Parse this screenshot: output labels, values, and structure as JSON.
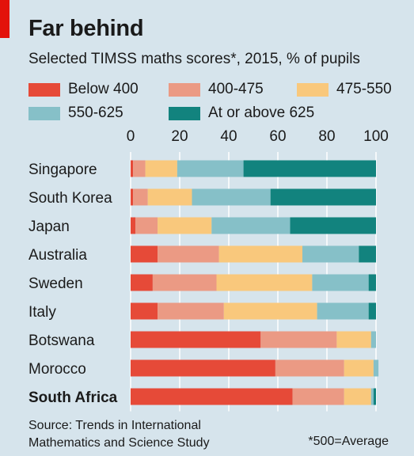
{
  "title": "Far behind",
  "subtitle": "Selected TIMSS maths scores*, 2015, % of pupils",
  "source_line1": "Source: Trends in International",
  "source_line2": "Mathematics and Science Study",
  "footnote": "*500=Average",
  "colors": {
    "background": "#d6e4ec",
    "accent": "#e3120b",
    "below_400": "#e64a38",
    "400_475": "#eb9a84",
    "475_550": "#f9c87c",
    "550_625": "#86c0c8",
    "625_plus": "#12837e",
    "grid": "#ffffff"
  },
  "chart_data": {
    "type": "bar",
    "orientation": "horizontal",
    "stacked": true,
    "title": "Far behind",
    "subtitle": "Selected TIMSS maths scores*, 2015, % of pupils",
    "xlim": [
      0,
      100
    ],
    "xticks": [
      0,
      20,
      40,
      60,
      80,
      100
    ],
    "grid": true,
    "legend_position": "top",
    "categories": [
      "Singapore",
      "South Korea",
      "Japan",
      "Australia",
      "Sweden",
      "Italy",
      "Botswana",
      "Morocco",
      "South Africa"
    ],
    "highlight": "South Africa",
    "series": [
      {
        "name": "Below 400",
        "values": [
          1,
          1,
          2,
          11,
          9,
          11,
          53,
          59,
          66
        ]
      },
      {
        "name": "400-475",
        "values": [
          5,
          6,
          9,
          25,
          26,
          27,
          31,
          28,
          21
        ]
      },
      {
        "name": "475-550",
        "values": [
          13,
          18,
          22,
          34,
          39,
          38,
          14,
          12,
          11
        ]
      },
      {
        "name": "550-625",
        "values": [
          27,
          32,
          32,
          23,
          23,
          21,
          2,
          2,
          1
        ]
      },
      {
        "name": "At or above 625",
        "values": [
          54,
          43,
          35,
          7,
          3,
          3,
          0,
          0,
          1
        ]
      }
    ]
  }
}
